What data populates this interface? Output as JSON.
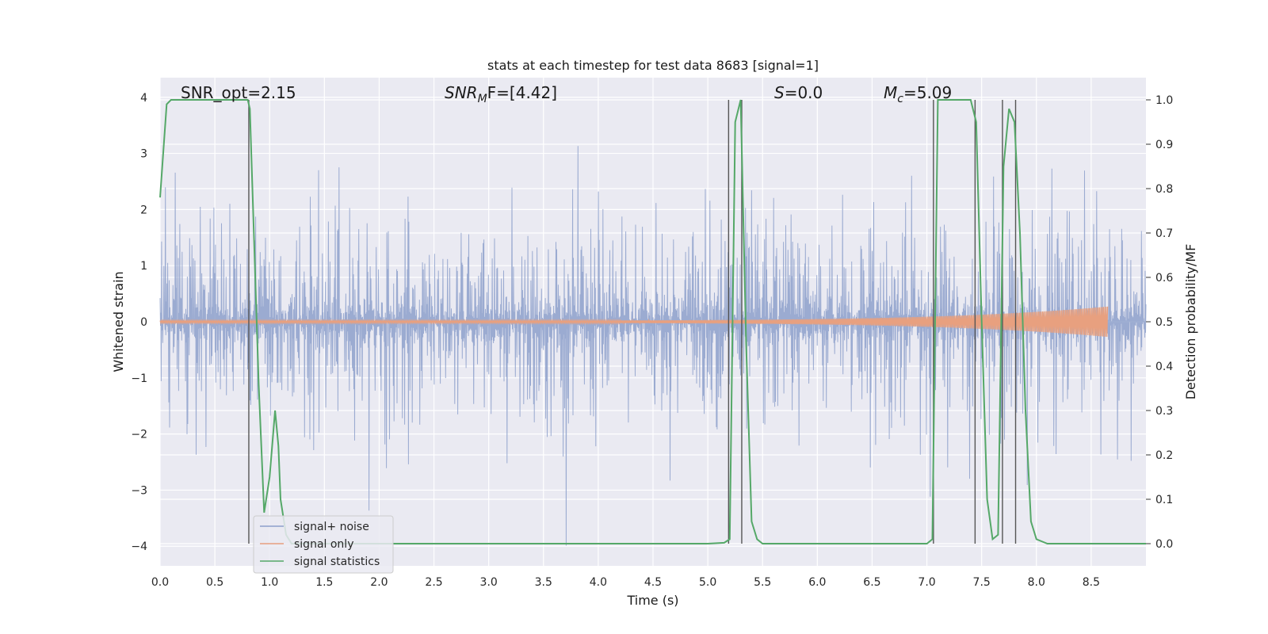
{
  "chart_data": {
    "type": "line",
    "title": "stats at each timestep for test data 8683 [signal=1]",
    "xlabel": "Time (s)",
    "ylabel": "Whitened strain",
    "ylabel_right": "Detection probability/MF",
    "xlim": [
      0.0,
      9.0
    ],
    "ylim": [
      -4.35,
      4.35
    ],
    "ylim_right": [
      -0.05,
      1.05
    ],
    "x_ticks": [
      "0.0",
      "0.5",
      "1.0",
      "1.5",
      "2.0",
      "2.5",
      "3.0",
      "3.5",
      "4.0",
      "4.5",
      "5.0",
      "5.5",
      "6.0",
      "6.5",
      "7.0",
      "7.5",
      "8.0",
      "8.5"
    ],
    "y_ticks_left": [
      "4",
      "3",
      "2",
      "1",
      "0",
      "−1",
      "−2",
      "−3",
      "−4"
    ],
    "y_ticks_right": [
      "1.0",
      "0.9",
      "0.8",
      "0.7",
      "0.6",
      "0.5",
      "0.4",
      "0.3",
      "0.2",
      "0.1",
      "0.0"
    ],
    "annotations": {
      "snr_opt": "SNR_opt=2.15",
      "snr_mf_main": "SNR",
      "snr_mf_sub": "M",
      "snr_mf_rest": "F=[4.42]",
      "s_main": "S",
      "s_rest": "=0.0",
      "mc_main": "M",
      "mc_sub": "c",
      "mc_rest": "=5.09"
    },
    "legend_placement": "lower-left",
    "series": [
      {
        "name": "signal+ noise",
        "color": "#8da0cb",
        "description_values": {
          "amplitude_typical": 1.6,
          "amplitude_peak": 4.0
        }
      },
      {
        "name": "signal only",
        "color": "#e8a07f",
        "chirp": {
          "t_start": 0.0,
          "t_end": 8.65,
          "amp_end": 0.25
        }
      },
      {
        "name": "signal statistics",
        "color": "#55a868",
        "x": [
          0.0,
          0.06,
          0.1,
          0.2,
          0.3,
          0.4,
          0.5,
          0.6,
          0.7,
          0.8,
          0.82,
          0.9,
          0.95,
          1.0,
          1.05,
          1.08,
          1.1,
          1.15,
          1.2,
          1.3,
          1.5,
          2.0,
          3.0,
          4.0,
          5.0,
          5.15,
          5.2,
          5.25,
          5.3,
          5.35,
          5.4,
          5.45,
          5.5,
          5.6,
          6.0,
          7.0,
          7.05,
          7.1,
          7.15,
          7.2,
          7.3,
          7.4,
          7.45,
          7.5,
          7.55,
          7.6,
          7.65,
          7.7,
          7.75,
          7.8,
          7.85,
          7.9,
          7.95,
          8.0,
          8.1,
          8.5,
          9.0
        ],
        "y": [
          0.78,
          0.99,
          1.0,
          1.0,
          1.0,
          1.0,
          1.0,
          1.0,
          1.0,
          1.0,
          0.98,
          0.36,
          0.07,
          0.15,
          0.3,
          0.22,
          0.1,
          0.02,
          0.0,
          0.0,
          0.0,
          0.0,
          0.0,
          0.0,
          0.0,
          0.002,
          0.01,
          0.95,
          1.0,
          0.45,
          0.05,
          0.01,
          0.0,
          0.0,
          0.0,
          0.0,
          0.01,
          1.0,
          1.0,
          1.0,
          1.0,
          1.0,
          0.95,
          0.5,
          0.1,
          0.01,
          0.02,
          0.85,
          0.98,
          0.95,
          0.7,
          0.3,
          0.05,
          0.01,
          0.0,
          0.0,
          0.0
        ]
      }
    ],
    "vertical_lines_x": [
      0.81,
      5.19,
      5.31,
      7.06,
      7.44,
      7.69,
      7.81
    ],
    "grid": true
  }
}
